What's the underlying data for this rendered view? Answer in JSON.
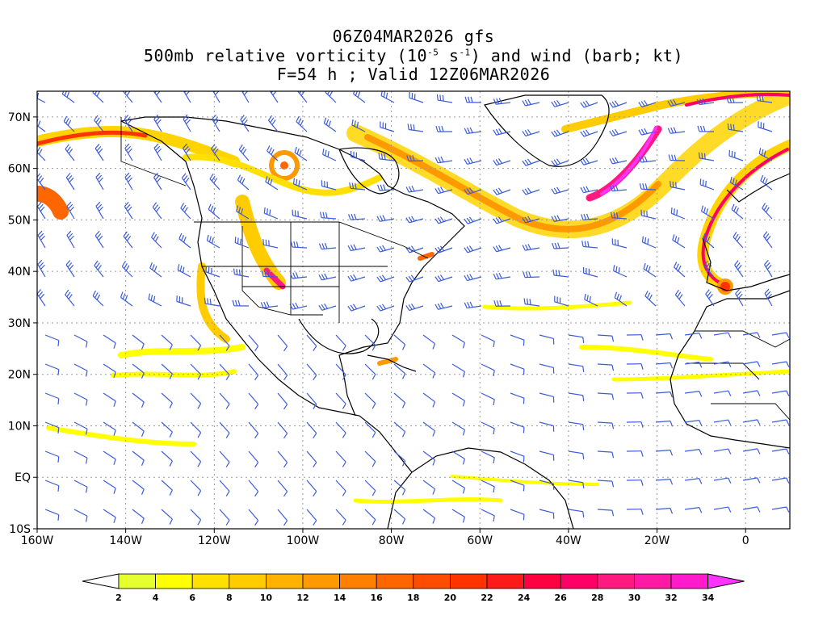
{
  "title": {
    "line1": "06Z04MAR2026 gfs",
    "line2_prefix": "500mb relative vorticity (10",
    "line2_exp1": "-5",
    "line2_mid": " s",
    "line2_exp2": "-1",
    "line2_suffix": ") and wind (barb; kt)",
    "line3": "F=54 h ; Valid 12Z06MAR2026"
  },
  "map": {
    "lon_range": [
      -160,
      10
    ],
    "lat_range": [
      -10,
      75
    ],
    "x_ticks": [
      {
        "value": -160,
        "label": "160W"
      },
      {
        "value": -140,
        "label": "140W"
      },
      {
        "value": -120,
        "label": "120W"
      },
      {
        "value": -100,
        "label": "100W"
      },
      {
        "value": -80,
        "label": "80W"
      },
      {
        "value": -60,
        "label": "60W"
      },
      {
        "value": -40,
        "label": "40W"
      },
      {
        "value": -20,
        "label": "20W"
      },
      {
        "value": 0,
        "label": "0"
      }
    ],
    "y_ticks": [
      {
        "value": 70,
        "label": "70N"
      },
      {
        "value": 60,
        "label": "60N"
      },
      {
        "value": 50,
        "label": "50N"
      },
      {
        "value": 40,
        "label": "40N"
      },
      {
        "value": 30,
        "label": "30N"
      },
      {
        "value": 20,
        "label": "20N"
      },
      {
        "value": 10,
        "label": "10N"
      },
      {
        "value": 0,
        "label": "EQ"
      },
      {
        "value": -10,
        "label": "10S"
      }
    ],
    "colors": {
      "barb": "#3b5bdb",
      "coast": "#000000",
      "grid": "#9a9a9a"
    }
  },
  "colorbar": {
    "labels": [
      "2",
      "4",
      "6",
      "8",
      "10",
      "12",
      "14",
      "16",
      "18",
      "20",
      "22",
      "24",
      "26",
      "28",
      "30",
      "32",
      "34"
    ],
    "colors": [
      "#e6ff2e",
      "#ffff00",
      "#ffe000",
      "#ffcc00",
      "#ffb300",
      "#ff9900",
      "#ff8000",
      "#ff6600",
      "#ff4d00",
      "#ff3300",
      "#ff1a1a",
      "#ff0040",
      "#ff0066",
      "#ff1a80",
      "#ff1aa6",
      "#ff1acc"
    ],
    "under_color": "#ffffff",
    "over_color": "#ff33ff"
  }
}
